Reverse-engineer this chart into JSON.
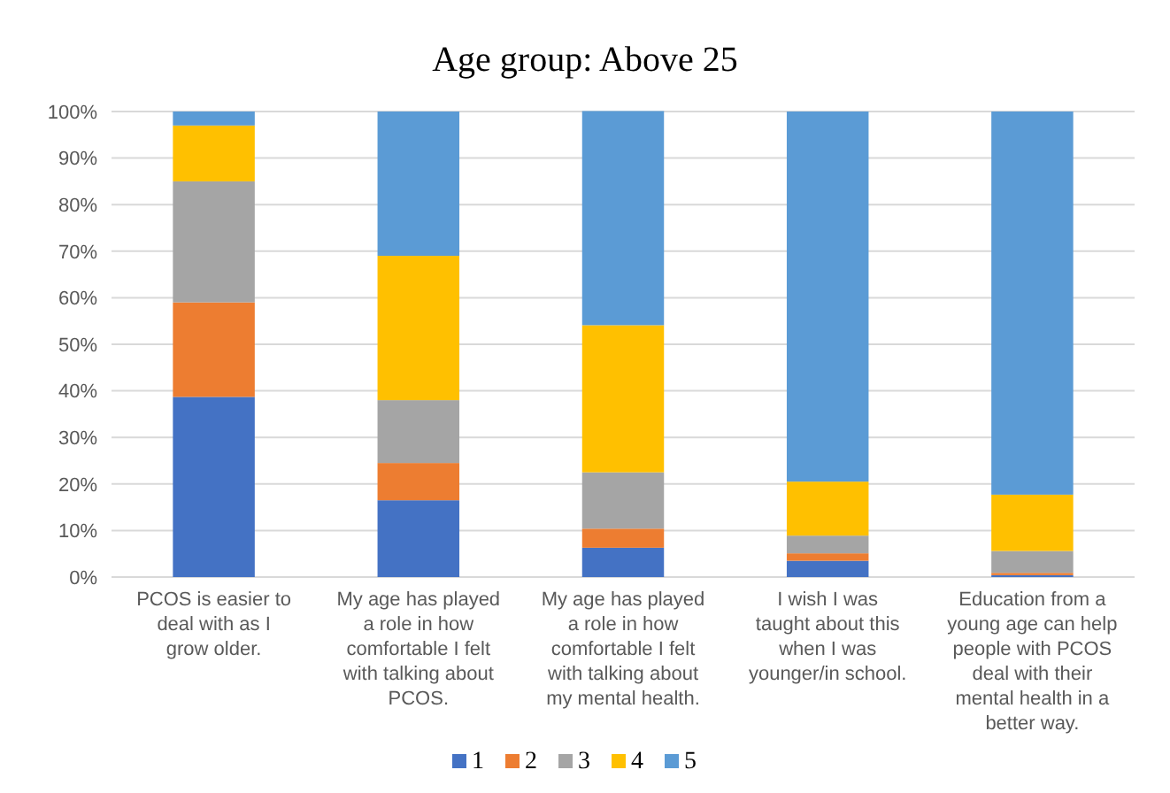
{
  "chart_data": {
    "type": "bar",
    "title": "Age group: Above 25",
    "stacked": true,
    "grid": "y",
    "legend": "bottom",
    "categories": [
      "PCOS is easier to deal with as I grow older.",
      "My age has played a role in how comfortable I felt with talking about PCOS.",
      "My age has played a role in how comfortable I felt with talking about my mental health.",
      "I wish I was taught about this when I was younger/in school.",
      "Education from a young age can help people with PCOS deal with their mental health in a better way."
    ],
    "series": [
      {
        "name": "1",
        "color": "#4472c4",
        "values": [
          38.7,
          16.5,
          6.3,
          3.5,
          0.4
        ]
      },
      {
        "name": "2",
        "color": "#ed7d31",
        "values": [
          20.3,
          8,
          4.1,
          1.6,
          0.5
        ]
      },
      {
        "name": "3",
        "color": "#a5a5a5",
        "values": [
          26,
          13.5,
          12.1,
          3.8,
          4.7
        ]
      },
      {
        "name": "4",
        "color": "#ffc000",
        "values": [
          12,
          31,
          31.6,
          11.6,
          12.1
        ]
      },
      {
        "name": "5",
        "color": "#5b9bd5",
        "values": [
          3,
          31,
          46,
          79.5,
          82.3
        ]
      }
    ],
    "ylim": [
      0,
      100
    ],
    "yticks": [
      {
        "value": 0,
        "label": "0%"
      },
      {
        "value": 10,
        "label": "10%"
      },
      {
        "value": 20,
        "label": "20%"
      },
      {
        "value": 30,
        "label": "30%"
      },
      {
        "value": 40,
        "label": "40%"
      },
      {
        "value": 50,
        "label": "50%"
      },
      {
        "value": 60,
        "label": "60%"
      },
      {
        "value": 70,
        "label": "70%"
      },
      {
        "value": 80,
        "label": "80%"
      },
      {
        "value": 90,
        "label": "90%"
      },
      {
        "value": 100,
        "label": "100%"
      }
    ]
  }
}
